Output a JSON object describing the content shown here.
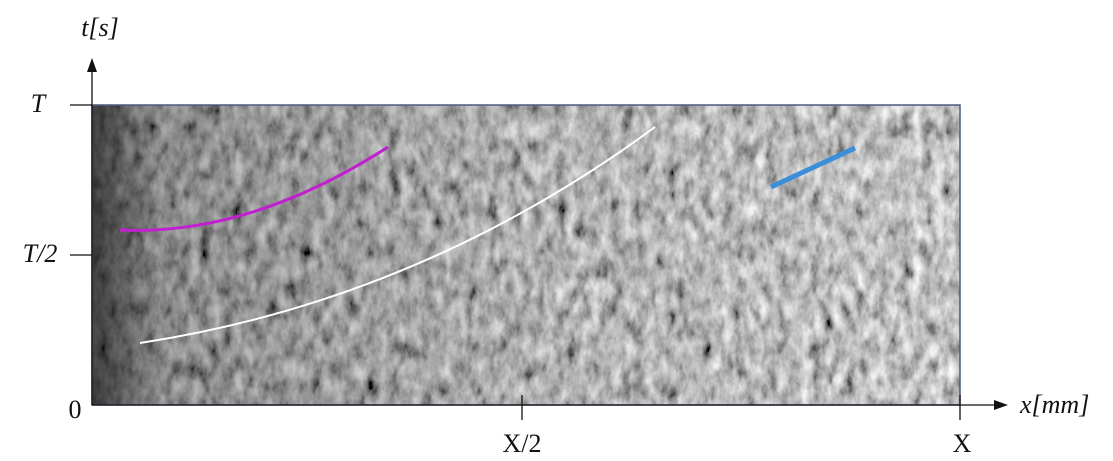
{
  "y_axis": {
    "label": "t[s]",
    "ticks": [
      "T",
      "T/2",
      "0"
    ]
  },
  "x_axis": {
    "label": "x[mm]",
    "ticks": [
      "X/2",
      "X"
    ]
  }
}
